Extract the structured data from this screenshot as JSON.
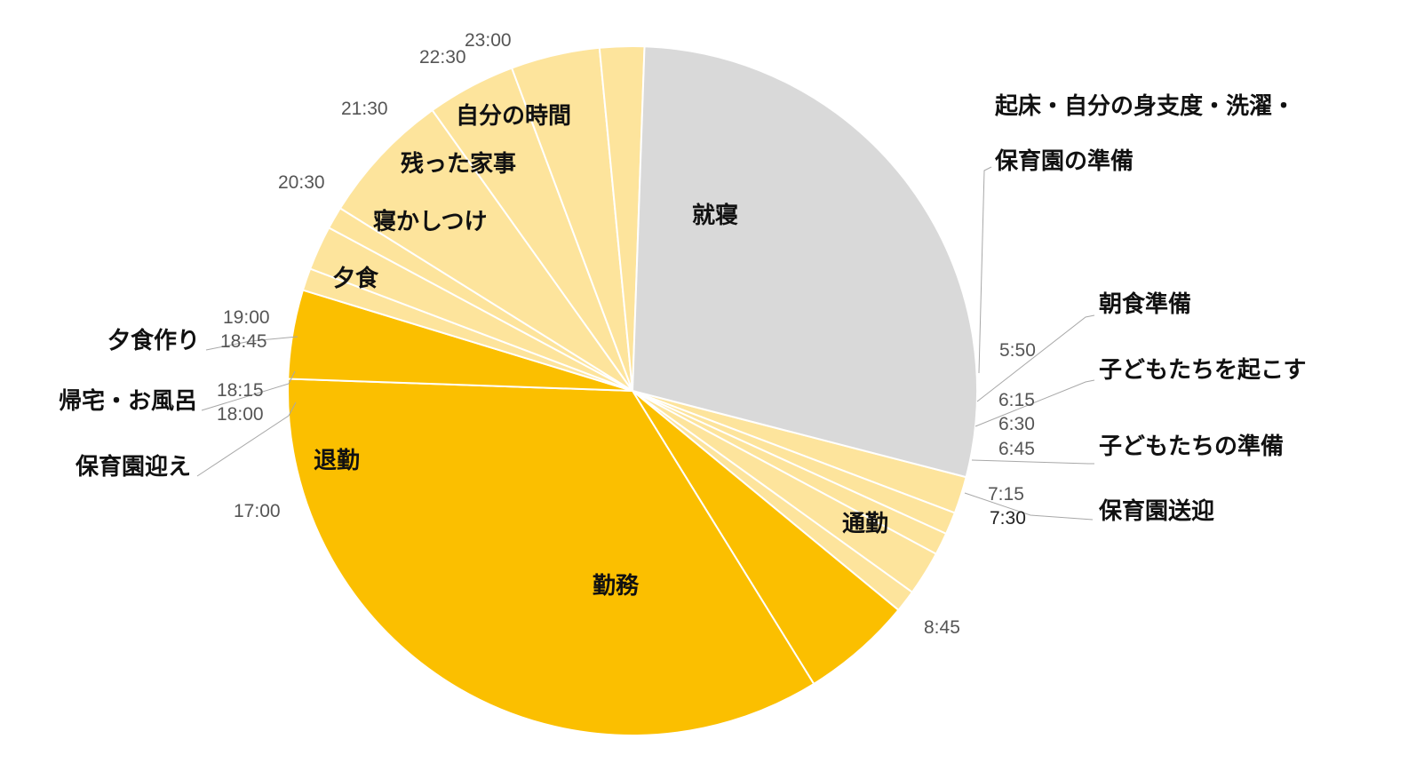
{
  "chart_data": {
    "type": "pie",
    "title": "",
    "unit": "time of day (24h clock)",
    "colors": {
      "sleep": "#d9d9d9",
      "light": "#fde49c",
      "dark": "#fbbf00"
    },
    "slices": [
      {
        "label": "起床・自分の身支度・洗濯・保育園の準備",
        "start": "5:50",
        "end": "6:15",
        "color_key": "light"
      },
      {
        "label": "朝食準備",
        "start": "6:15",
        "end": "6:30",
        "color_key": "light"
      },
      {
        "label": "子どもたちを起こす",
        "start": "6:30",
        "end": "6:45",
        "color_key": "light"
      },
      {
        "label": "子どもたちの準備",
        "start": "6:45",
        "end": "7:15",
        "color_key": "light"
      },
      {
        "label": "保育園送迎",
        "start": "7:15",
        "end": "7:30",
        "color_key": "light"
      },
      {
        "label": "通勤",
        "start": "7:30",
        "end": "8:45",
        "color_key": "dark"
      },
      {
        "label": "勤務",
        "start": "8:45",
        "end": "17:00",
        "color_key": "dark"
      },
      {
        "label": "退勤",
        "start": "17:00",
        "end": "18:00",
        "color_key": "dark"
      },
      {
        "label": "保育園迎え",
        "start": "18:00",
        "end": "18:15",
        "color_key": "light"
      },
      {
        "label": "帰宅・お風呂",
        "start": "18:15",
        "end": "18:45",
        "color_key": "light"
      },
      {
        "label": "夕食作り",
        "start": "18:45",
        "end": "19:00",
        "color_key": "light"
      },
      {
        "label": "夕食",
        "start": "19:00",
        "end": "20:30",
        "color_key": "light"
      },
      {
        "label": "寝かしつけ",
        "start": "20:30",
        "end": "21:30",
        "color_key": "light"
      },
      {
        "label": "残った家事",
        "start": "21:30",
        "end": "22:30",
        "color_key": "light"
      },
      {
        "label": "自分の時間",
        "start": "22:30",
        "end": "23:00",
        "color_key": "light"
      },
      {
        "label": "就寝",
        "start": "23:00",
        "end": "5:50",
        "color_key": "sleep"
      }
    ],
    "category_labels_text": {
      "wake_line1": "起床・自分の身支度・洗濯・",
      "wake_line2": "保育園の準備",
      "breakfast": "朝食準備",
      "wake_kids": "子どもたちを起こす",
      "kids_prep": "子どもたちの準備",
      "dropoff": "保育園送迎",
      "commute": "通勤",
      "work": "勤務",
      "leave": "退勤",
      "pickup": "保育園迎え",
      "home_bath": "帰宅・お風呂",
      "cook": "夕食作り",
      "dinner": "夕食",
      "bedtime": "寝かしつけ",
      "chores": "残った家事",
      "me_time": "自分の時間",
      "sleep": "就寝"
    },
    "time_labels": [
      "5:50",
      "6:15",
      "6:30",
      "6:45",
      "7:15",
      "7:30",
      "8:45",
      "17:00",
      "18:00",
      "18:15",
      "18:45",
      "19:00",
      "20:30",
      "21:30",
      "22:30",
      "23:00"
    ]
  }
}
